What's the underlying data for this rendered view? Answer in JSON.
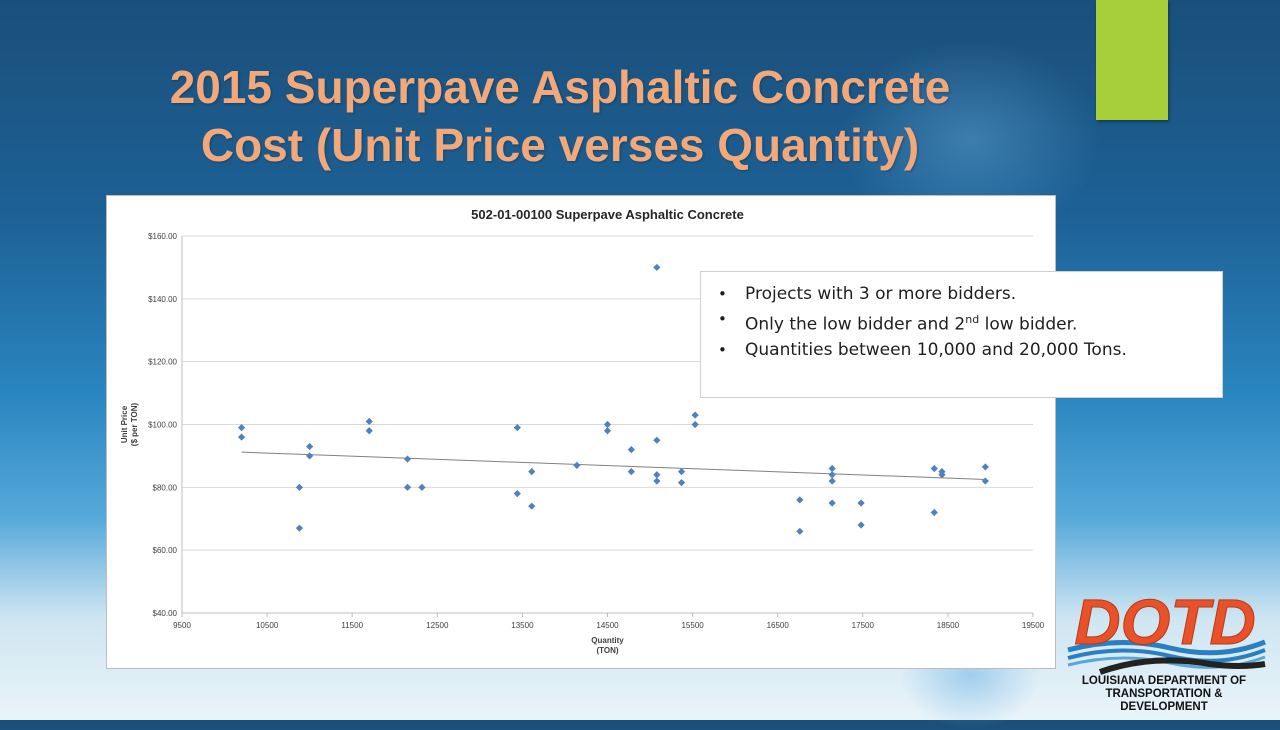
{
  "slide": {
    "title_line1": "2015 Superpave Asphaltic Concrete",
    "title_line2": "Cost (Unit Price verses Quantity)"
  },
  "colors": {
    "accent_bar": "#a6ce39",
    "title": "#f2a878",
    "marker": "#4f81bd",
    "trendline": "#808080"
  },
  "callout": {
    "items": [
      {
        "text": "Projects with 3 or more bidders."
      },
      {
        "text": "Only the low bidder and 2",
        "sup": "nd",
        "after": " low bidder."
      },
      {
        "text": "Quantities between 10,000 and 20,000 Tons."
      }
    ]
  },
  "logo": {
    "wordmark": "DOTD",
    "line1": "LOUISIANA DEPARTMENT OF",
    "line2": "TRANSPORTATION & DEVELOPMENT"
  },
  "chart_data": {
    "type": "scatter",
    "title": "502-01-00100 Superpave Asphaltic Concrete",
    "xlabel_line1": "Quantity",
    "xlabel_line2": "(TON)",
    "ylabel_line1": "Unit Price",
    "ylabel_line2": "($ per TON)",
    "xlim": [
      9500,
      19500
    ],
    "ylim": [
      40,
      160
    ],
    "x_ticks": [
      9500,
      10500,
      11500,
      12500,
      13500,
      14500,
      15500,
      16500,
      17500,
      18500,
      19500
    ],
    "y_ticks": [
      40,
      60,
      80,
      100,
      120,
      140,
      160
    ],
    "y_tick_labels": [
      "$40.00",
      "$60.00",
      "$80.00",
      "$100.00",
      "$120.00",
      "$140.00",
      "$160.00"
    ],
    "grid": "horizontal",
    "marker": "diamond",
    "trendline": {
      "type": "linear",
      "x": [
        10200,
        18950
      ],
      "y": [
        91.2,
        82.5
      ]
    },
    "points": [
      {
        "x": 10200,
        "y": 99
      },
      {
        "x": 10200,
        "y": 96
      },
      {
        "x": 10880,
        "y": 80
      },
      {
        "x": 10880,
        "y": 67
      },
      {
        "x": 11000,
        "y": 93
      },
      {
        "x": 11000,
        "y": 90
      },
      {
        "x": 11700,
        "y": 101
      },
      {
        "x": 11700,
        "y": 98
      },
      {
        "x": 12150,
        "y": 89
      },
      {
        "x": 12150,
        "y": 80
      },
      {
        "x": 12320,
        "y": 80
      },
      {
        "x": 13440,
        "y": 99
      },
      {
        "x": 13440,
        "y": 78
      },
      {
        "x": 13610,
        "y": 85
      },
      {
        "x": 13610,
        "y": 74
      },
      {
        "x": 14140,
        "y": 87
      },
      {
        "x": 14500,
        "y": 100
      },
      {
        "x": 14500,
        "y": 98
      },
      {
        "x": 14780,
        "y": 92
      },
      {
        "x": 14780,
        "y": 85
      },
      {
        "x": 15080,
        "y": 150
      },
      {
        "x": 15080,
        "y": 95
      },
      {
        "x": 15080,
        "y": 84
      },
      {
        "x": 15080,
        "y": 82
      },
      {
        "x": 15370,
        "y": 85
      },
      {
        "x": 15370,
        "y": 81.5
      },
      {
        "x": 15530,
        "y": 103
      },
      {
        "x": 15530,
        "y": 100
      },
      {
        "x": 16760,
        "y": 76
      },
      {
        "x": 16760,
        "y": 66
      },
      {
        "x": 17140,
        "y": 86
      },
      {
        "x": 17140,
        "y": 84
      },
      {
        "x": 17140,
        "y": 82
      },
      {
        "x": 17140,
        "y": 75
      },
      {
        "x": 17480,
        "y": 75
      },
      {
        "x": 17480,
        "y": 68
      },
      {
        "x": 18340,
        "y": 86
      },
      {
        "x": 18340,
        "y": 72
      },
      {
        "x": 18430,
        "y": 85
      },
      {
        "x": 18430,
        "y": 84
      },
      {
        "x": 18940,
        "y": 86.5
      },
      {
        "x": 18940,
        "y": 82
      }
    ]
  }
}
